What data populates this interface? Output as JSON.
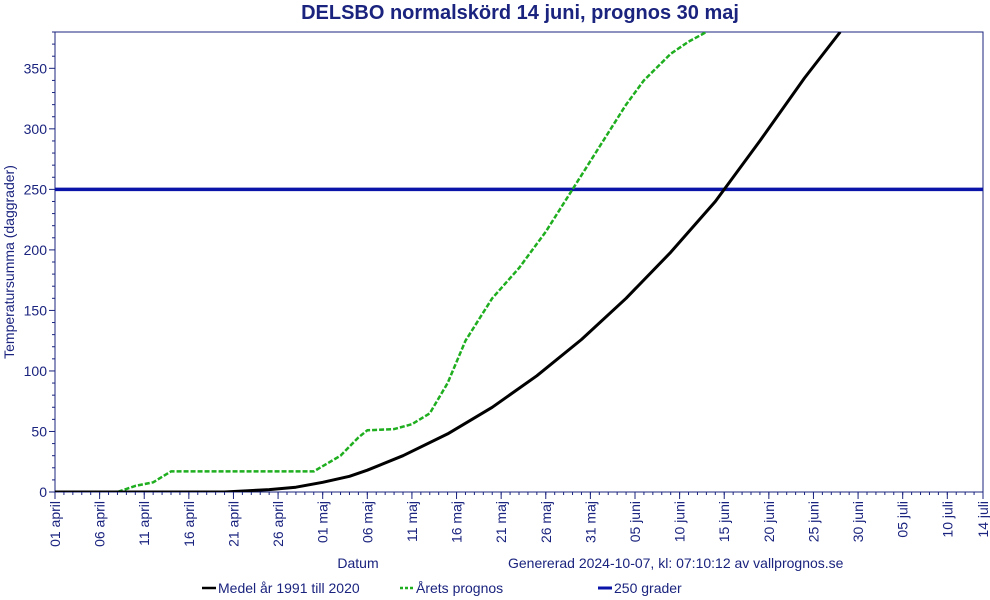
{
  "chart_data": {
    "type": "line",
    "title": "DELSBO normalskörd 14 juni, prognos 30 maj",
    "xlabel": "Datum",
    "ylabel": "Temperatursumma (daggrader)",
    "generated": "Genererad 2024-10-07, kl: 07:10:12 av vallprognos.se",
    "ylim": [
      0,
      380
    ],
    "xlim": [
      "01 april",
      "14 juli"
    ],
    "yticks": [
      0,
      50,
      100,
      150,
      200,
      250,
      300,
      350
    ],
    "xticks": [
      "01 april",
      "06 april",
      "11 april",
      "16 april",
      "21 april",
      "26 april",
      "01 maj",
      "06 maj",
      "11 maj",
      "16 maj",
      "21 maj",
      "26 maj",
      "31 maj",
      "05 juni",
      "10 juni",
      "15 juni",
      "20 juni",
      "25 juni",
      "30 juni",
      "05 juli",
      "10 juli",
      "14 juli"
    ],
    "grid": false,
    "legend_position": "bottom",
    "colors": {
      "axis": "#1a237e",
      "medel": "#000000",
      "prognos": "#1fae1f",
      "grader": "#0a14a8"
    },
    "series": [
      {
        "name": "Medel år 1991 till 2020",
        "style": "solid",
        "points": [
          [
            "01 april",
            0
          ],
          [
            "20 april",
            0
          ],
          [
            "25 april",
            2
          ],
          [
            "28 april",
            4
          ],
          [
            "01 maj",
            8
          ],
          [
            "04 maj",
            13
          ],
          [
            "06 maj",
            18
          ],
          [
            "10 maj",
            30
          ],
          [
            "15 maj",
            48
          ],
          [
            "20 maj",
            70
          ],
          [
            "25 maj",
            96
          ],
          [
            "30 maj",
            126
          ],
          [
            "04 juni",
            160
          ],
          [
            "09 juni",
            198
          ],
          [
            "14 juni",
            240
          ],
          [
            "19 juni",
            290
          ],
          [
            "24 juni",
            342
          ],
          [
            "28 juni",
            380
          ]
        ]
      },
      {
        "name": "Årets prognos",
        "style": "dashed",
        "points": [
          [
            "01 april",
            0
          ],
          [
            "08 april",
            0
          ],
          [
            "10 april",
            5
          ],
          [
            "12 april",
            8
          ],
          [
            "14 april",
            17
          ],
          [
            "30 april",
            17
          ],
          [
            "03 maj",
            30
          ],
          [
            "05 maj",
            45
          ],
          [
            "06 maj",
            51
          ],
          [
            "09 maj",
            52
          ],
          [
            "11 maj",
            56
          ],
          [
            "13 maj",
            65
          ],
          [
            "15 maj",
            90
          ],
          [
            "17 maj",
            125
          ],
          [
            "20 maj",
            160
          ],
          [
            "23 maj",
            185
          ],
          [
            "26 maj",
            215
          ],
          [
            "29 maj",
            250
          ],
          [
            "01 juni",
            285
          ],
          [
            "04 juni",
            320
          ],
          [
            "06 juni",
            340
          ],
          [
            "09 juni",
            362
          ],
          [
            "11 juni",
            372
          ],
          [
            "13 juni",
            380
          ]
        ]
      },
      {
        "name": "250 grader",
        "style": "solid",
        "points": [
          [
            "01 april",
            250
          ],
          [
            "14 juli",
            250
          ]
        ]
      }
    ]
  }
}
